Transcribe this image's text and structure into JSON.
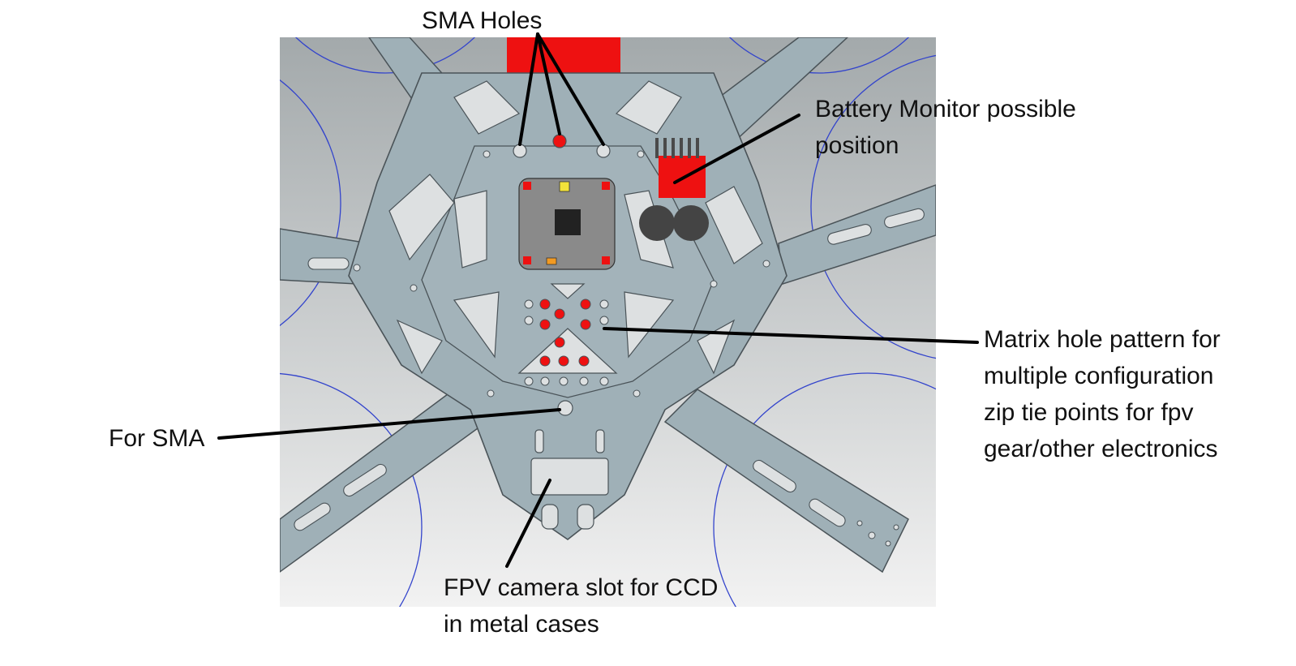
{
  "labels": {
    "sma_holes": "SMA Holes",
    "battery_monitor": [
      "Battery Monitor possible",
      "position"
    ],
    "matrix_holes": [
      "Matrix hole pattern for",
      "multiple configuration",
      "zip tie points for fpv",
      "gear/other electronics"
    ],
    "for_sma": "For SMA",
    "fpv_slot": [
      "FPV camera slot for CCD",
      "in metal cases"
    ]
  },
  "colors": {
    "background_gradient_top": "#a3a9ab",
    "background_gradient_bottom": "#f2f2f2",
    "frame_plate": "#9fb0b7",
    "frame_outline": "#4a5358",
    "highlight_red": "#ee1111",
    "prop_circle": "#3344cc",
    "flight_controller": "#8a8a8a",
    "leader_line": "#000000"
  }
}
